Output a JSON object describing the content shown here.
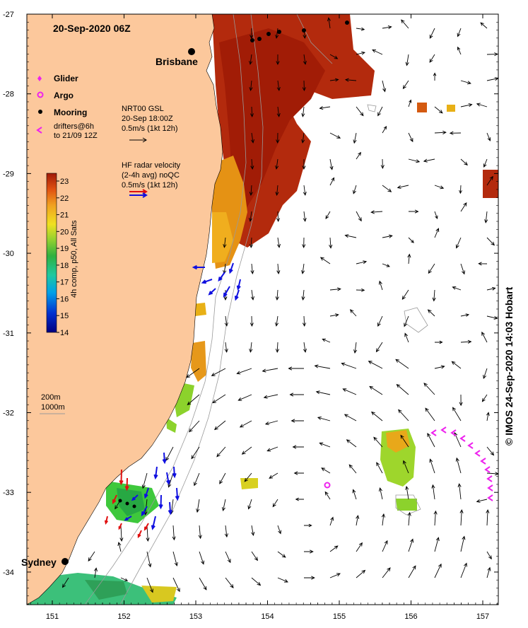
{
  "title": "20-Sep-2020 06Z",
  "places": [
    {
      "name": "Brisbane"
    },
    {
      "name": "Sydney"
    }
  ],
  "legend": {
    "glider": "Glider",
    "argo": "Argo",
    "mooring": "Mooring",
    "drifters_line1": "drifters@6h",
    "drifters_line2": "to 21/09 12Z",
    "gsl_line1": "NRT00 GSL",
    "gsl_line2": "20-Sep 18:00Z",
    "gsl_line3": "0.5m/s (1kt 12h)",
    "hf_line1": "HF radar velocity",
    "hf_line2": "(2-4h avg) noQC",
    "hf_line3": "0.5m/s (1kt 12h)",
    "depth_200": "200m",
    "depth_1000": "1000m"
  },
  "colorbar": {
    "label": "4h comp, p50, All Sats",
    "ticks": [
      "23",
      "22",
      "21",
      "20",
      "19",
      "18",
      "17",
      "16",
      "15",
      "14"
    ],
    "min": 14,
    "max": 23
  },
  "axes": {
    "lat_ticks": [
      "-27",
      "-28",
      "-29",
      "-30",
      "-31",
      "-32",
      "-33",
      "-34"
    ],
    "lon_ticks": [
      "151",
      "152",
      "153",
      "154",
      "155",
      "156",
      "157"
    ]
  },
  "credit": "© IMOS 24-Sep-2020 14:03 Hobart",
  "colors": {
    "land": "#fcc89c",
    "warm": "#b22a0a",
    "current_arrow": "#000000",
    "hf_blue": "#1010e0",
    "hf_red": "#e01010",
    "drifter": "#ee22ee"
  }
}
